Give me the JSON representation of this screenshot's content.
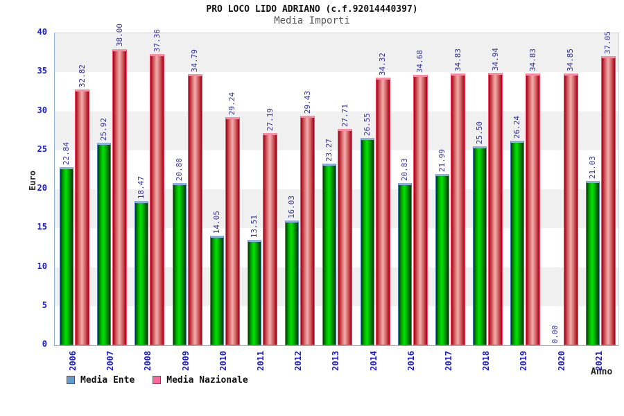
{
  "header": {
    "title": "PRO LOCO LIDO ADRIANO (c.f.92014440397)",
    "subtitle": "Media Importi"
  },
  "chart_data": {
    "type": "bar",
    "title": "PRO LOCO LIDO ADRIANO (c.f.92014440397)",
    "subtitle": "Media Importi",
    "categories": [
      "2006",
      "2007",
      "2008",
      "2009",
      "2010",
      "2011",
      "2012",
      "2013",
      "2014",
      "2016",
      "2017",
      "2018",
      "2019",
      "2020",
      "2021"
    ],
    "series": [
      {
        "name": "Media Ente",
        "legend_color": "#6699cc",
        "bar_fill": "#00cc00",
        "values": [
          22.84,
          25.92,
          18.47,
          20.8,
          14.05,
          13.51,
          16.03,
          23.27,
          26.55,
          20.83,
          21.99,
          25.5,
          26.24,
          0.0,
          21.03
        ]
      },
      {
        "name": "Media Nazionale",
        "legend_color": "#ff6699",
        "bar_fill": "#dd4455",
        "values": [
          32.82,
          38.0,
          37.36,
          34.79,
          29.24,
          27.19,
          29.43,
          27.71,
          34.32,
          34.68,
          34.83,
          34.94,
          34.83,
          34.85,
          37.05
        ]
      }
    ],
    "xlabel": "Anno",
    "ylabel": "Euro",
    "ylim": [
      0,
      40
    ],
    "y_ticks": [
      0,
      5,
      10,
      15,
      20,
      25,
      30,
      35,
      40
    ],
    "grid": "alternating-horizontal-bands",
    "legend_position": "bottom-left",
    "value_labels": "rotated-90-above-bars",
    "tick_label_color": "#1b1bd0",
    "value_label_color": "#30309c"
  }
}
